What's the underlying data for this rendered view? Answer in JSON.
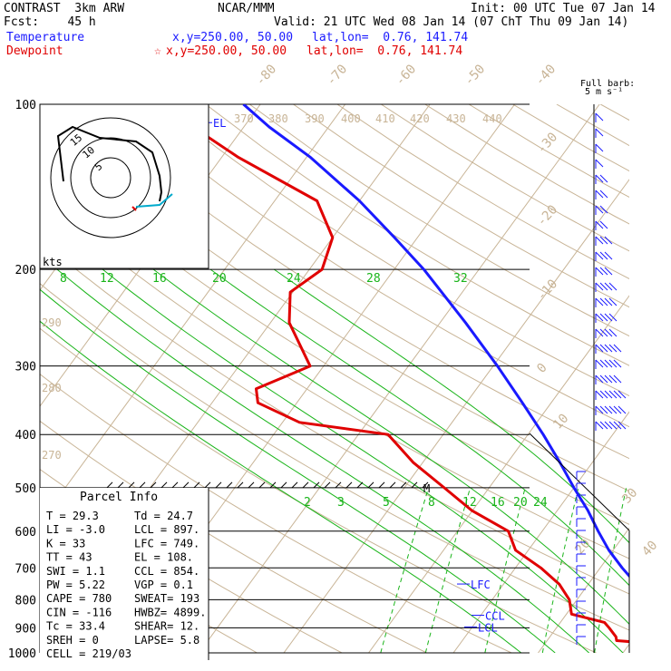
{
  "header": {
    "model": "CONTRAST  3km ARW",
    "fcst": "Fcst:    45 h",
    "center": "NCAR/MMM",
    "init": "Init: 00 UTC Tue 07 Jan 14",
    "valid": "Valid: 21 UTC Wed 08 Jan 14 (07 ChT Thu 09 Jan 14)"
  },
  "legend": {
    "temperature": {
      "label": "Temperature",
      "loc": "x,y=250.00, 50.00",
      "latlon": "lat,lon=  0.76, 141.74",
      "color": "#1a1aff"
    },
    "dewpoint": {
      "label": "Dewpoint",
      "loc": "x,y=250.00, 50.00",
      "latlon": "lat,lon=  0.76, 141.74",
      "marker": "☆",
      "color": "#e00000"
    }
  },
  "barb_title": [
    "Full barb:",
    "5 m s⁻¹"
  ],
  "hodo_units": "kts",
  "parcel_info": {
    "title": "Parcel Info",
    "rows": [
      [
        "T   =    29.3",
        "Td =  24.7"
      ],
      [
        "LI  =    -3.0",
        "LCL =  897."
      ],
      [
        "K   =     33",
        "LFC =  749."
      ],
      [
        "TT  =     43",
        "EL  =  108."
      ],
      [
        "SWI =     1.1",
        "CCL =  854."
      ],
      [
        "PW  =    5.22",
        "VGP =   0.1"
      ],
      [
        "CAPE =    780",
        "SWEAT=  193"
      ],
      [
        "CIN  =   -116",
        "HWBZ= 4899."
      ],
      [
        "Tc  =    33.4",
        "SHEAR=  12."
      ],
      [
        "SREH =      0",
        "LAPSE=  5.8"
      ],
      [
        "CELL = 219/03",
        ""
      ]
    ]
  },
  "chart_data": {
    "type": "line",
    "title": "",
    "ylabel": "",
    "xlabel": "",
    "pressure_levels": [
      100,
      200,
      300,
      400,
      500,
      600,
      700,
      800,
      900,
      1000
    ],
    "pressure_range_hPa": [
      100,
      1000
    ],
    "y_scale": "log-pressure",
    "isotherm_labels_C": [
      -80,
      -70,
      -60,
      -50,
      -40,
      -30,
      -20,
      -10,
      0,
      10,
      20,
      30,
      40
    ],
    "dry_adiabat_labels_K": [
      370,
      380,
      390,
      400,
      410,
      420,
      430,
      440,
      290,
      280,
      270
    ],
    "moist_adiabat_labels_C": [
      8,
      12,
      16,
      20,
      24,
      28,
      32
    ],
    "mixing_ratio_labels": [
      2,
      3,
      5,
      8,
      12,
      16,
      20,
      24
    ],
    "series": [
      {
        "name": "Temperature",
        "color": "#1a1aff",
        "points": [
          [
            1000,
            29.3
          ],
          [
            970,
            27.5
          ],
          [
            950,
            26.1
          ],
          [
            925,
            24.8
          ],
          [
            900,
            23.3
          ],
          [
            850,
            20.7
          ],
          [
            800,
            18.4
          ],
          [
            750,
            15.7
          ],
          [
            700,
            12.6
          ],
          [
            650,
            9.5
          ],
          [
            600,
            6.6
          ],
          [
            550,
            3.6
          ],
          [
            500,
            0.0
          ],
          [
            450,
            -3.8
          ],
          [
            400,
            -8.2
          ],
          [
            350,
            -13.4
          ],
          [
            300,
            -19.5
          ],
          [
            250,
            -27.0
          ],
          [
            200,
            -36.5
          ],
          [
            175,
            -42.7
          ],
          [
            150,
            -50.0
          ],
          [
            125,
            -59.5
          ],
          [
            110,
            -67.0
          ],
          [
            100,
            -72.0
          ]
        ]
      },
      {
        "name": "Dewpoint",
        "color": "#e00000",
        "points": [
          [
            1000,
            24.7
          ],
          [
            980,
            24.4
          ],
          [
            965,
            24.3
          ],
          [
            950,
            18.2
          ],
          [
            935,
            17.8
          ],
          [
            900,
            16.2
          ],
          [
            880,
            15.2
          ],
          [
            850,
            10.6
          ],
          [
            800,
            9.1
          ],
          [
            750,
            6.6
          ],
          [
            700,
            3.0
          ],
          [
            650,
            -1.5
          ],
          [
            600,
            -4.0
          ],
          [
            550,
            -10.1
          ],
          [
            500,
            -15.3
          ],
          [
            450,
            -21.1
          ],
          [
            400,
            -26.5
          ],
          [
            380,
            -38.0
          ],
          [
            350,
            -44.6
          ],
          [
            330,
            -46.0
          ],
          [
            300,
            -41.6
          ],
          [
            250,
            -47.8
          ],
          [
            220,
            -50.3
          ],
          [
            200,
            -48.5
          ],
          [
            175,
            -50.0
          ],
          [
            150,
            -55.0
          ],
          [
            125,
            -68.0
          ],
          [
            110,
            -76.0
          ],
          [
            100,
            -79.0
          ]
        ]
      }
    ],
    "levels_marked": [
      {
        "label": "EL",
        "p": 108
      },
      {
        "label": "LFC",
        "p": 749
      },
      {
        "label": "CCL",
        "p": 854
      },
      {
        "label": "LCL",
        "p": 897
      },
      {
        "label": "M",
        "p": 500
      }
    ],
    "hodograph": {
      "units": "kts",
      "ring_labels": [
        "5",
        "10",
        "15"
      ]
    },
    "wind_barbs": {
      "note": "Full barb: 5 m s-1"
    }
  }
}
